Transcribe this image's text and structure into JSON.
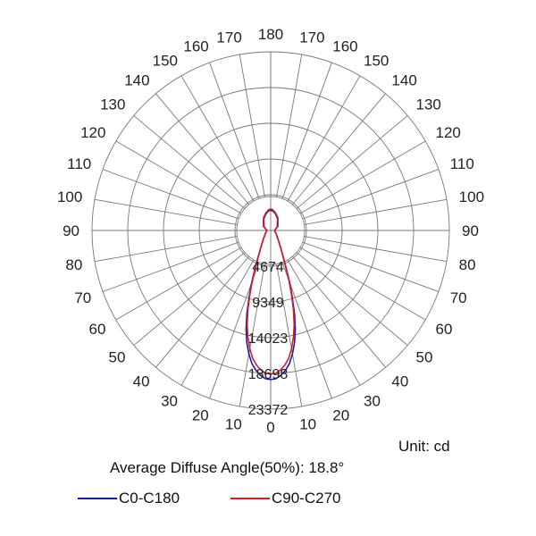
{
  "chart_data": {
    "type": "polar",
    "title": "",
    "unit_label": "Unit: cd",
    "beam_angle_label": "Average Diffuse Angle(50%): 18.8°",
    "angle_ticks_left": [
      "0",
      "10",
      "20",
      "30",
      "40",
      "50",
      "60",
      "70",
      "80",
      "90",
      "100",
      "110",
      "120",
      "130",
      "140",
      "150",
      "160",
      "170",
      "180"
    ],
    "angle_ticks_right": [
      "10",
      "20",
      "30",
      "40",
      "50",
      "60",
      "70",
      "80",
      "90",
      "100",
      "110",
      "120",
      "130",
      "140",
      "150",
      "160",
      "170"
    ],
    "radial_ticks": [
      "4674",
      "9349",
      "14023",
      "18698",
      "23372"
    ],
    "radial_values": [
      4674,
      9349,
      14023,
      18698,
      23372
    ],
    "r_max": 23372,
    "angles": [
      0,
      2,
      4,
      6,
      8,
      10,
      12,
      14,
      16,
      18,
      20,
      22,
      25,
      30,
      40,
      60,
      90,
      120,
      150,
      165,
      175,
      180
    ],
    "series": [
      {
        "name": "C0-C180",
        "color": "#1a1aa8",
        "values": [
          19500,
          19400,
          19000,
          18400,
          17600,
          16400,
          15000,
          13300,
          11300,
          9100,
          7300,
          5600,
          4000,
          2600,
          1500,
          800,
          500,
          1000,
          1800,
          2300,
          2600,
          2650
        ]
      },
      {
        "name": "C90-C270",
        "color": "#d21f2a",
        "values": [
          18800,
          18700,
          18300,
          17700,
          16900,
          15700,
          14300,
          12700,
          10800,
          8800,
          7000,
          5400,
          3900,
          2600,
          1500,
          800,
          500,
          1100,
          1900,
          2400,
          2750,
          2800
        ]
      }
    ]
  }
}
